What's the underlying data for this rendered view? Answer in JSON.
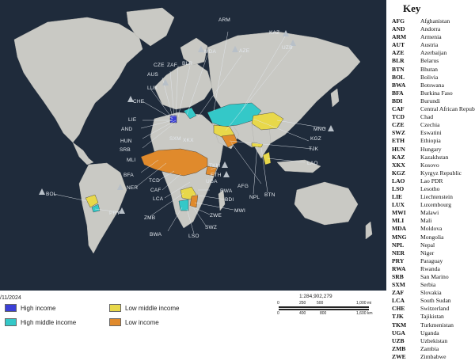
{
  "date_label": "/11/2024",
  "legend": [
    {
      "label": "High income",
      "color": "#3b3fd6"
    },
    {
      "label": "High middle income",
      "color": "#34c8c8"
    },
    {
      "label": "Low middle income",
      "color": "#e8d84a"
    },
    {
      "label": "Low income",
      "color": "#e08a2c"
    }
  ],
  "scale": {
    "ratio": "1:284,902,279",
    "mi_ticks": [
      "0",
      "250",
      "500",
      "1,000 mi"
    ],
    "km_ticks": [
      "0",
      "400",
      "800",
      "1,600 km"
    ]
  },
  "key": {
    "title": "Key",
    "entries": [
      {
        "code": "AFG",
        "name": "Afghanistan"
      },
      {
        "code": "AND",
        "name": "Andorra"
      },
      {
        "code": "ARM",
        "name": "Armenia"
      },
      {
        "code": "AUT",
        "name": "Austria"
      },
      {
        "code": "AZE",
        "name": "Azerbaijan"
      },
      {
        "code": "BLR",
        "name": "Belarus"
      },
      {
        "code": "BTN",
        "name": "Bhutan"
      },
      {
        "code": "BOL",
        "name": "Bolivia"
      },
      {
        "code": "BWA",
        "name": "Botswana"
      },
      {
        "code": "BFA",
        "name": "Burkina Faso"
      },
      {
        "code": "BDI",
        "name": "Burundi"
      },
      {
        "code": "CAF",
        "name": "Central African Republ"
      },
      {
        "code": "TCD",
        "name": "Chad"
      },
      {
        "code": "CZE",
        "name": "Czechia"
      },
      {
        "code": "SWZ",
        "name": "Eswatini"
      },
      {
        "code": "ETH",
        "name": "Ethiopia"
      },
      {
        "code": "HUN",
        "name": "Hungary"
      },
      {
        "code": "KAZ",
        "name": "Kazakhstan"
      },
      {
        "code": "XKX",
        "name": "Kosovo"
      },
      {
        "code": "KGZ",
        "name": "Kyrgyz Republic"
      },
      {
        "code": "LAO",
        "name": "Lao PDR"
      },
      {
        "code": "LSO",
        "name": "Lesotho"
      },
      {
        "code": "LIE",
        "name": "Liechtenstein"
      },
      {
        "code": "LUX",
        "name": "Luxembourg"
      },
      {
        "code": "MWI",
        "name": "Malawi"
      },
      {
        "code": "MLI",
        "name": "Mali"
      },
      {
        "code": "MDA",
        "name": "Moldova"
      },
      {
        "code": "MNG",
        "name": "Mongolia"
      },
      {
        "code": "NPL",
        "name": "Nepal"
      },
      {
        "code": "NER",
        "name": "Niger"
      },
      {
        "code": "PRY",
        "name": "Paraguay"
      },
      {
        "code": "RWA",
        "name": "Rwanda"
      },
      {
        "code": "SRB",
        "name": "San Marino"
      },
      {
        "code": "SXM",
        "name": "Serbia"
      },
      {
        "code": "ZAF",
        "name": "Slovakia"
      },
      {
        "code": "LCA",
        "name": "South Sudan"
      },
      {
        "code": "CHE",
        "name": "Switzerland"
      },
      {
        "code": "TJK",
        "name": "Tajikistan"
      },
      {
        "code": "TKM",
        "name": "Turkmenistan"
      },
      {
        "code": "UGA",
        "name": "Uganda"
      },
      {
        "code": "UZB",
        "name": "Uzbekistan"
      },
      {
        "code": "ZMB",
        "name": "Zambia"
      },
      {
        "code": "ZWE",
        "name": "Zimbabwe"
      }
    ]
  },
  "map_labels": {
    "arm": "ARM",
    "kaz": "KAZ",
    "mda": "MDA",
    "aze": "AZE",
    "uzb": "UZB",
    "cze": "CZE",
    "zaf": "ZAF",
    "blr": "BLR",
    "aus": "AUS",
    "lux": "LUX",
    "che": "CHE",
    "lie": "LIE",
    "and": "AND",
    "hun": "HUN",
    "srb": "SRB",
    "mli": "MLI",
    "bfa": "BFA",
    "ner": "NER",
    "bol": "BOL",
    "sxm": "SXM",
    "xkx": "XKX",
    "mng": "MNG",
    "kgz": "KGZ",
    "tjk": "TJK",
    "lao": "LAO",
    "tcd": "TCD",
    "caf": "CAF",
    "lca": "LCA",
    "tkm": "TKM",
    "eth": "ETH",
    "uga": "UGA",
    "rwa": "RWA",
    "bdi": "BDI",
    "afg": "AFG",
    "npl": "NPL",
    "btn": "BTN",
    "zmb": "ZMB",
    "zwe": "ZWE",
    "mwi": "MWI",
    "swz": "SWZ",
    "lso": "LSO",
    "bwa": "BWA",
    "pry": "PRY"
  }
}
